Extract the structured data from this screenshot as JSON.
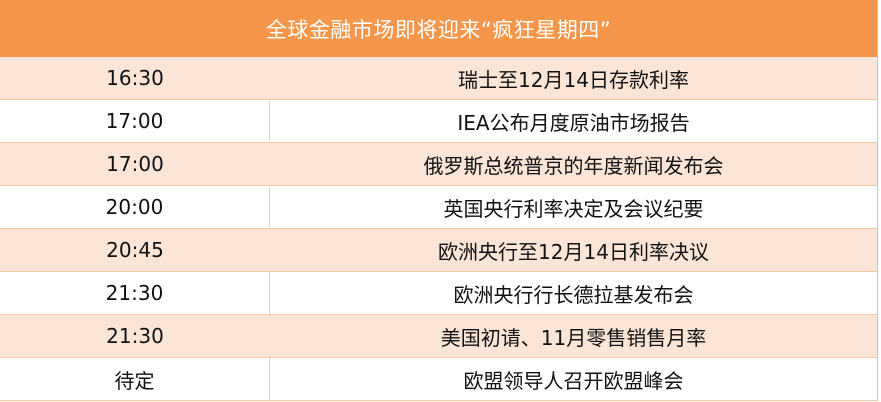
{
  "title": "全球金融市场即将迎来“疯狂星期四”",
  "colors": {
    "header": "#f5964a",
    "alt_row": "#fbe5d6"
  },
  "rows": [
    {
      "time": "16:30",
      "event": "瑞士至12月14日存款利率"
    },
    {
      "time": "17:00",
      "event": "IEA公布月度原油市场报告"
    },
    {
      "time": "17:00",
      "event": "俄罗斯总统普京的年度新闻发布会"
    },
    {
      "time": "20:00",
      "event": "英国央行利率决定及会议纪要"
    },
    {
      "time": "20:45",
      "event": "欧洲央行至12月14日利率决议"
    },
    {
      "time": "21:30",
      "event": "欧洲央行行长德拉基发布会"
    },
    {
      "time": "21:30",
      "event": "美国初请、11月零售销售月率"
    },
    {
      "time": "待定",
      "event": "欧盟领导人召开欧盟峰会"
    }
  ]
}
